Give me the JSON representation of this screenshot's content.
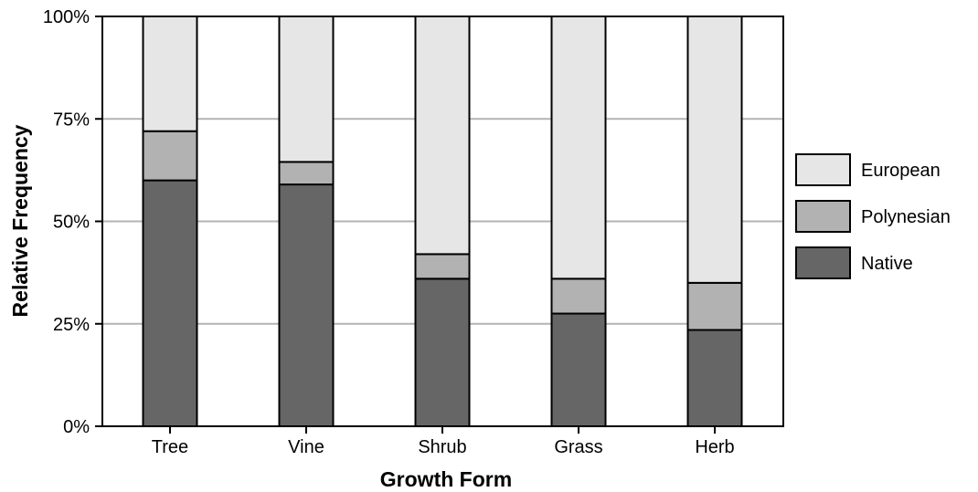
{
  "chart_data": {
    "type": "bar",
    "stacked": true,
    "categories": [
      "Tree",
      "Vine",
      "Shrub",
      "Grass",
      "Herb"
    ],
    "series": [
      {
        "name": "Native",
        "values": [
          60,
          59,
          36,
          27.5,
          23.5
        ],
        "color": "#666666"
      },
      {
        "name": "Polynesian",
        "values": [
          12,
          5.5,
          6,
          8.5,
          11.5
        ],
        "color": "#b2b2b2"
      },
      {
        "name": "European",
        "values": [
          28,
          35.5,
          58,
          64,
          65
        ],
        "color": "#e6e6e6"
      }
    ],
    "legend_order": [
      "European",
      "Polynesian",
      "Native"
    ],
    "legend_position": "right",
    "xlabel": "Growth Form",
    "ylabel": "Relative Frequency",
    "ylim": [
      0,
      100
    ],
    "yticks": [
      0,
      25,
      50,
      75,
      100
    ],
    "ytick_labels": [
      "0%",
      "25%",
      "50%",
      "75%",
      "100%"
    ],
    "grid": "horizontal",
    "grid_color": "#b3b3b3",
    "border_color": "#000000"
  }
}
